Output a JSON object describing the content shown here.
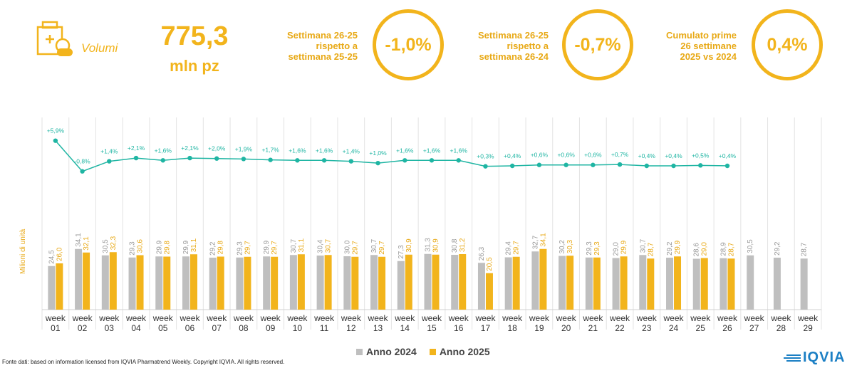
{
  "header": {
    "volume_label": "Volumi",
    "total_value": "775,3",
    "total_unit": "mln pz",
    "kpis": [
      {
        "lines": [
          "Settimana 26-25",
          "rispetto a",
          "settimana 25-25"
        ],
        "value": "-1,0%"
      },
      {
        "lines": [
          "Settimana 26-25",
          "rispetto a",
          "settimana 26-24"
        ],
        "value": "-0,7%"
      },
      {
        "lines": [
          "Cumulato prime",
          "26 settimane",
          "2025 vs 2024"
        ],
        "value": "0,4%"
      }
    ]
  },
  "colors": {
    "accent": "#F2B41C",
    "series_2024": "#BFBFBF",
    "series_2025": "#F2B41C",
    "growth_line": "#1FB5A3",
    "logo": "#1B7FC4"
  },
  "chart_data": {
    "type": "bar",
    "ylabel": "Milioni di unità",
    "categories": [
      "week 01",
      "week 02",
      "week 03",
      "week 04",
      "week 05",
      "week 06",
      "week 07",
      "week 08",
      "week 09",
      "week 10",
      "week 11",
      "week 12",
      "week 13",
      "week 14",
      "week 15",
      "week 16",
      "week 17",
      "week 18",
      "week 19",
      "week 20",
      "week 21",
      "week 22",
      "week 23",
      "week 24",
      "week 25",
      "week 26",
      "week 27",
      "week 28",
      "week 29"
    ],
    "ylim": [
      0,
      60
    ],
    "series": [
      {
        "name": "Anno 2024",
        "values": [
          24.5,
          34.1,
          30.5,
          29.3,
          29.9,
          29.9,
          29.2,
          29.3,
          29.9,
          30.7,
          30.4,
          30.0,
          30.7,
          27.3,
          31.3,
          30.8,
          26.3,
          29.4,
          32.7,
          30.2,
          29.3,
          29.0,
          30.7,
          29.2,
          28.6,
          28.9,
          30.5,
          29.2,
          28.7
        ],
        "labels": [
          "24,5",
          "34,1",
          "30,5",
          "29,3",
          "29,9",
          "29,9",
          "29,2",
          "29,3",
          "29,9",
          "30,7",
          "30,4",
          "30,0",
          "30,7",
          "27,3",
          "31,3",
          "30,8",
          "26,3",
          "29,4",
          "32,7",
          "30,2",
          "29,3",
          "29,0",
          "30,7",
          "29,2",
          "28,6",
          "28,9",
          "30,5",
          "29,2",
          "28,7"
        ]
      },
      {
        "name": "Anno 2025",
        "values": [
          26.0,
          32.1,
          32.3,
          30.6,
          29.8,
          31.1,
          29.8,
          29.7,
          29.7,
          31.1,
          30.7,
          29.7,
          29.7,
          30.9,
          30.9,
          31.2,
          20.5,
          29.7,
          34.1,
          30.3,
          29.3,
          29.9,
          28.7,
          29.9,
          29.0,
          28.7,
          null,
          null,
          null
        ],
        "labels": [
          "26,0",
          "32,1",
          "32,3",
          "30,6",
          "29,8",
          "31,1",
          "29,8",
          "29,7",
          "29,7",
          "31,1",
          "30,7",
          "29,7",
          "29,7",
          "30,9",
          "30,9",
          "31,2",
          "20,5",
          "29,7",
          "34,1",
          "30,3",
          "29,3",
          "29,9",
          "28,7",
          "29,9",
          "29,0",
          "28,7",
          null,
          null,
          null
        ]
      }
    ],
    "growth": {
      "values": [
        5.9,
        -0.8,
        1.4,
        2.1,
        1.6,
        2.1,
        2.0,
        1.9,
        1.7,
        1.6,
        1.6,
        1.4,
        1.0,
        1.6,
        1.6,
        1.6,
        0.3,
        0.4,
        0.6,
        0.6,
        0.6,
        0.7,
        0.4,
        0.4,
        0.5,
        0.4
      ],
      "labels": [
        "+5,9%",
        "-0,8%",
        "+1,4%",
        "+2,1%",
        "+1,6%",
        "+2,1%",
        "+2,0%",
        "+1,9%",
        "+1,7%",
        "+1,6%",
        "+1,6%",
        "+1,4%",
        "+1,0%",
        "+1,6%",
        "+1,6%",
        "+1,6%",
        "+0,3%",
        "+0,4%",
        "+0,6%",
        "+0,6%",
        "+0,6%",
        "+0,7%",
        "+0,4%",
        "+0,4%",
        "+0,5%",
        "+0,4%"
      ],
      "range": [
        -1,
        6
      ]
    },
    "legend": "bottom"
  },
  "footer": {
    "source": "Fonte dati: based on information licensed from IQVIA Pharmatrend Weekly. Copyright IQVIA. All rights reserved.",
    "logo_text": "IQVIA"
  }
}
